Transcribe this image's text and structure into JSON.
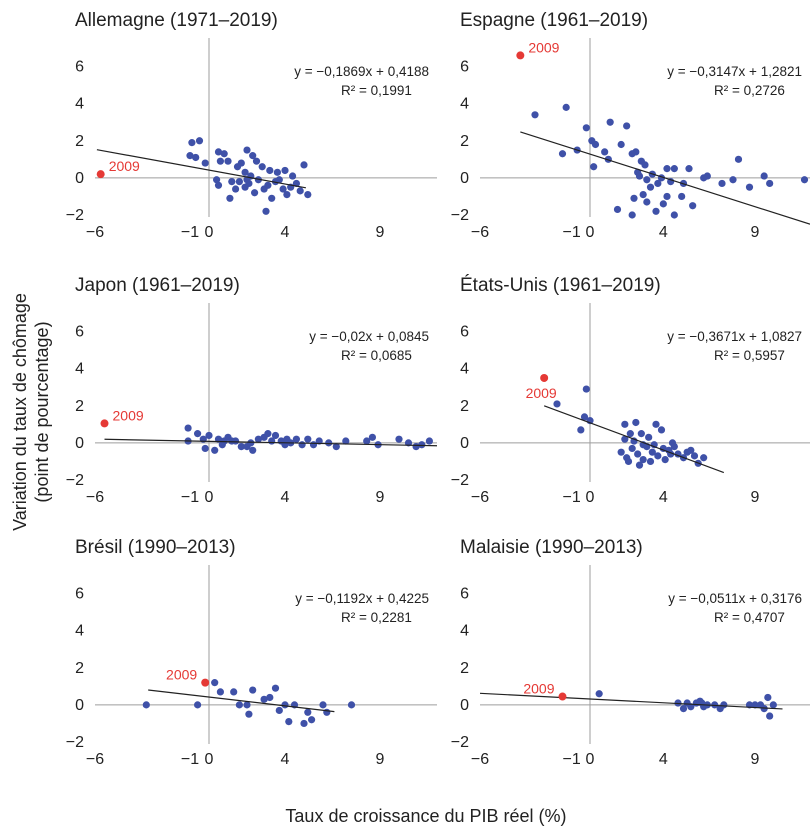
{
  "figure": {
    "ylabel_line1": "Variation du taux de chômage",
    "ylabel_line2": "(point de pourcentage)",
    "xlabel": "Taux de croissance du PIB réel (%)"
  },
  "colors": {
    "point": "#3f51a8",
    "highlight": "#e53935",
    "axis": "#9e9e9e",
    "line": "#222222"
  },
  "chart_data": [
    {
      "type": "scatter",
      "title": "Allemagne (1971–2019)",
      "xlim": [
        -6,
        12
      ],
      "ylim": [
        -2,
        7
      ],
      "xticks": [
        -6,
        -1,
        0,
        4,
        9
      ],
      "yticks": [
        -2,
        0,
        2,
        4,
        6
      ],
      "xtick_labels": [
        "−6",
        "−1",
        "0",
        "4",
        "9"
      ],
      "ytick_labels": [
        "−2",
        "0",
        "2",
        "4",
        "6"
      ],
      "equation": "y = −0,1869x + 0,4188",
      "r2": "R² = 0,1991",
      "slope": -0.1869,
      "intercept": 0.4188,
      "fit_x": [
        -5.9,
        5.1
      ],
      "highlight": {
        "x": -5.7,
        "y": 0.2,
        "label": "2009"
      },
      "points": [
        [
          -1.0,
          1.2
        ],
        [
          -0.9,
          1.9
        ],
        [
          -0.5,
          2.0
        ],
        [
          -0.7,
          1.1
        ],
        [
          -0.2,
          0.8
        ],
        [
          0.5,
          1.4
        ],
        [
          0.8,
          1.3
        ],
        [
          1.0,
          0.9
        ],
        [
          0.6,
          0.9
        ],
        [
          1.5,
          0.6
        ],
        [
          2.0,
          1.5
        ],
        [
          2.3,
          1.2
        ],
        [
          2.5,
          0.9
        ],
        [
          2.8,
          0.6
        ],
        [
          3.2,
          0.4
        ],
        [
          1.7,
          0.8
        ],
        [
          1.9,
          0.3
        ],
        [
          2.2,
          0.1
        ],
        [
          3.6,
          0.3
        ],
        [
          4.0,
          0.4
        ],
        [
          4.4,
          0.1
        ],
        [
          5.0,
          0.7
        ],
        [
          0.4,
          -0.1
        ],
        [
          0.5,
          -0.4
        ],
        [
          1.1,
          -1.1
        ],
        [
          1.4,
          -0.6
        ],
        [
          1.6,
          -0.2
        ],
        [
          1.9,
          -0.5
        ],
        [
          2.1,
          -0.3
        ],
        [
          2.4,
          -0.8
        ],
        [
          2.6,
          -0.1
        ],
        [
          2.9,
          -0.6
        ],
        [
          3.1,
          -0.4
        ],
        [
          3.3,
          -1.1
        ],
        [
          3.5,
          -0.2
        ],
        [
          3.7,
          -0.1
        ],
        [
          3.9,
          -0.6
        ],
        [
          4.1,
          -0.9
        ],
        [
          4.3,
          -0.5
        ],
        [
          4.6,
          -0.3
        ],
        [
          5.2,
          -0.9
        ],
        [
          3.0,
          -1.8
        ],
        [
          2.0,
          -0.1
        ],
        [
          1.2,
          -0.2
        ],
        [
          4.8,
          -0.7
        ]
      ]
    },
    {
      "type": "scatter",
      "title": "Espagne (1961–2019)",
      "xlim": [
        -6,
        12
      ],
      "ylim": [
        -2,
        7
      ],
      "xticks": [
        -6,
        -1,
        0,
        4,
        9
      ],
      "yticks": [
        -2,
        0,
        2,
        4,
        6
      ],
      "xtick_labels": [
        "−6",
        "−1",
        "0",
        "4",
        "9"
      ],
      "ytick_labels": [
        "−2",
        "0",
        "2",
        "4",
        "6"
      ],
      "equation": "y = −0,3147x + 1,2821",
      "r2": "R² = 0,2726",
      "slope": -0.3147,
      "intercept": 1.2821,
      "fit_x": [
        -3.8,
        12.0
      ],
      "highlight": {
        "x": -3.8,
        "y": 6.6,
        "label": "2009"
      },
      "points": [
        [
          -3.0,
          3.4
        ],
        [
          -1.3,
          3.8
        ],
        [
          -0.7,
          1.5
        ],
        [
          -1.5,
          1.3
        ],
        [
          -0.2,
          2.7
        ],
        [
          0.1,
          2.0
        ],
        [
          0.3,
          1.8
        ],
        [
          1.1,
          3.0
        ],
        [
          2.0,
          2.8
        ],
        [
          1.7,
          1.8
        ],
        [
          2.5,
          1.4
        ],
        [
          0.8,
          1.4
        ],
        [
          2.3,
          1.3
        ],
        [
          2.8,
          0.9
        ],
        [
          3.0,
          0.7
        ],
        [
          2.6,
          0.3
        ],
        [
          3.4,
          0.2
        ],
        [
          4.2,
          0.5
        ],
        [
          4.6,
          0.5
        ],
        [
          5.4,
          0.5
        ],
        [
          3.9,
          0.0
        ],
        [
          6.2,
          0.0
        ],
        [
          6.4,
          0.1
        ],
        [
          7.2,
          -0.3
        ],
        [
          8.1,
          1.0
        ],
        [
          8.7,
          -0.5
        ],
        [
          9.5,
          0.1
        ],
        [
          9.8,
          -0.3
        ],
        [
          11.7,
          -0.1
        ],
        [
          7.8,
          -0.1
        ],
        [
          5.1,
          -0.3
        ],
        [
          3.7,
          -0.3
        ],
        [
          3.3,
          -0.5
        ],
        [
          2.9,
          -0.9
        ],
        [
          3.1,
          -1.3
        ],
        [
          2.4,
          -1.1
        ],
        [
          1.5,
          -1.7
        ],
        [
          2.3,
          -2.0
        ],
        [
          3.6,
          -1.8
        ],
        [
          4.2,
          -1.0
        ],
        [
          4.6,
          -2.0
        ],
        [
          5.6,
          -1.5
        ],
        [
          5.0,
          -1.0
        ],
        [
          4.0,
          -1.4
        ],
        [
          3.1,
          -0.1
        ],
        [
          2.7,
          0.1
        ],
        [
          4.4,
          -0.2
        ],
        [
          1.0,
          1.0
        ],
        [
          0.2,
          0.6
        ]
      ]
    },
    {
      "type": "scatter",
      "title": "Japon (1961–2019)",
      "xlim": [
        -6,
        12
      ],
      "ylim": [
        -2,
        7
      ],
      "xticks": [
        -6,
        -1,
        0,
        4,
        9
      ],
      "yticks": [
        -2,
        0,
        2,
        4,
        6
      ],
      "xtick_labels": [
        "−6",
        "−1",
        "0",
        "4",
        "9"
      ],
      "ytick_labels": [
        "−2",
        "0",
        "2",
        "4",
        "6"
      ],
      "equation": "y = −0,02x + 0,0845",
      "r2": "R² = 0,0685",
      "slope": -0.02,
      "intercept": 0.0845,
      "fit_x": [
        -5.5,
        12.0
      ],
      "highlight": {
        "x": -5.5,
        "y": 1.05,
        "label": "2009"
      },
      "points": [
        [
          -1.1,
          0.1
        ],
        [
          -1.1,
          0.8
        ],
        [
          -0.6,
          0.5
        ],
        [
          -0.3,
          0.2
        ],
        [
          -0.2,
          -0.3
        ],
        [
          0.0,
          0.4
        ],
        [
          0.3,
          -0.4
        ],
        [
          0.5,
          0.2
        ],
        [
          0.7,
          -0.1
        ],
        [
          1.0,
          0.3
        ],
        [
          1.2,
          0.1
        ],
        [
          1.4,
          0.1
        ],
        [
          1.7,
          -0.2
        ],
        [
          2.0,
          -0.2
        ],
        [
          2.3,
          -0.4
        ],
        [
          2.6,
          0.2
        ],
        [
          2.9,
          0.3
        ],
        [
          3.1,
          0.5
        ],
        [
          3.3,
          0.1
        ],
        [
          3.5,
          0.4
        ],
        [
          3.8,
          0.1
        ],
        [
          4.1,
          0.2
        ],
        [
          4.3,
          0.0
        ],
        [
          4.6,
          0.2
        ],
        [
          4.9,
          -0.1
        ],
        [
          5.2,
          0.2
        ],
        [
          5.5,
          -0.1
        ],
        [
          5.8,
          0.1
        ],
        [
          6.3,
          0.0
        ],
        [
          6.7,
          -0.2
        ],
        [
          8.3,
          0.1
        ],
        [
          8.6,
          0.3
        ],
        [
          8.9,
          -0.1
        ],
        [
          10.0,
          0.2
        ],
        [
          10.5,
          0.0
        ],
        [
          10.9,
          -0.2
        ],
        [
          11.2,
          -0.1
        ],
        [
          11.6,
          0.1
        ],
        [
          0.8,
          0.1
        ],
        [
          2.2,
          0.0
        ],
        [
          4.0,
          -0.1
        ],
        [
          7.2,
          0.1
        ]
      ]
    },
    {
      "type": "scatter",
      "title": "États-Unis (1961–2019)",
      "xlim": [
        -6,
        12
      ],
      "ylim": [
        -2,
        7
      ],
      "xticks": [
        -6,
        -1,
        0,
        4,
        9
      ],
      "yticks": [
        -2,
        0,
        2,
        4,
        6
      ],
      "xtick_labels": [
        "−6",
        "−1",
        "0",
        "4",
        "9"
      ],
      "ytick_labels": [
        "−2",
        "0",
        "2",
        "4",
        "6"
      ],
      "equation": "y = −0,3671x + 1,0827",
      "r2": "R² = 0,5957",
      "slope": -0.3671,
      "intercept": 1.0827,
      "fit_x": [
        -2.5,
        7.3
      ],
      "highlight": {
        "x": -2.5,
        "y": 3.5,
        "label": "2009"
      },
      "points": [
        [
          -1.8,
          2.1
        ],
        [
          -0.5,
          0.7
        ],
        [
          -0.3,
          1.4
        ],
        [
          -0.2,
          2.9
        ],
        [
          0.0,
          1.2
        ],
        [
          1.9,
          1.0
        ],
        [
          2.2,
          0.5
        ],
        [
          2.5,
          1.1
        ],
        [
          2.8,
          0.5
        ],
        [
          3.2,
          0.3
        ],
        [
          3.6,
          1.0
        ],
        [
          3.9,
          0.7
        ],
        [
          1.7,
          -0.5
        ],
        [
          2.0,
          -0.8
        ],
        [
          2.3,
          -0.3
        ],
        [
          2.6,
          -0.6
        ],
        [
          2.9,
          -0.9
        ],
        [
          3.1,
          -0.2
        ],
        [
          3.4,
          -0.5
        ],
        [
          3.7,
          -0.7
        ],
        [
          4.0,
          -0.3
        ],
        [
          4.3,
          -0.4
        ],
        [
          4.5,
          0.0
        ],
        [
          4.8,
          -0.6
        ],
        [
          5.1,
          -0.8
        ],
        [
          5.5,
          -0.4
        ],
        [
          5.9,
          -1.1
        ],
        [
          6.2,
          -0.8
        ],
        [
          2.1,
          -1.0
        ],
        [
          2.7,
          -1.2
        ],
        [
          3.3,
          -1.0
        ],
        [
          4.1,
          -0.9
        ],
        [
          4.6,
          -0.2
        ],
        [
          1.9,
          0.2
        ],
        [
          2.4,
          0.1
        ],
        [
          2.9,
          -0.1
        ],
        [
          3.5,
          -0.1
        ],
        [
          4.4,
          -0.6
        ],
        [
          5.3,
          -0.5
        ],
        [
          5.7,
          -0.7
        ]
      ]
    },
    {
      "type": "scatter",
      "title": "Brésil (1990–2013)",
      "xlim": [
        -6,
        12
      ],
      "ylim": [
        -2,
        7
      ],
      "xticks": [
        -6,
        -1,
        0,
        4,
        9
      ],
      "yticks": [
        -2,
        0,
        2,
        4,
        6
      ],
      "xtick_labels": [
        "−6",
        "−1",
        "0",
        "4",
        "9"
      ],
      "ytick_labels": [
        "−2",
        "0",
        "2",
        "4",
        "6"
      ],
      "equation": "y = −0,1192x + 0,4225",
      "r2": "R² = 0,2281",
      "slope": -0.1192,
      "intercept": 0.4225,
      "fit_x": [
        -3.2,
        6.6
      ],
      "highlight": {
        "x": -0.2,
        "y": 1.2,
        "label": "2009"
      },
      "points": [
        [
          -3.3,
          0.0
        ],
        [
          -0.6,
          0.0
        ],
        [
          0.3,
          1.2
        ],
        [
          0.6,
          0.7
        ],
        [
          1.3,
          0.7
        ],
        [
          1.6,
          0.0
        ],
        [
          2.1,
          -0.5
        ],
        [
          2.3,
          0.8
        ],
        [
          2.9,
          0.3
        ],
        [
          3.2,
          0.4
        ],
        [
          3.5,
          0.9
        ],
        [
          3.7,
          -0.3
        ],
        [
          4.0,
          0.0
        ],
        [
          4.2,
          -0.9
        ],
        [
          4.5,
          0.0
        ],
        [
          5.0,
          -1.0
        ],
        [
          5.2,
          -0.4
        ],
        [
          5.4,
          -0.8
        ],
        [
          6.0,
          0.0
        ],
        [
          6.2,
          -0.4
        ],
        [
          7.5,
          0.0
        ],
        [
          2.0,
          0.0
        ]
      ]
    },
    {
      "type": "scatter",
      "title": "Malaisie (1990–2013)",
      "xlim": [
        -6,
        12
      ],
      "ylim": [
        -2,
        7
      ],
      "xticks": [
        -6,
        -1,
        0,
        4,
        9
      ],
      "yticks": [
        -2,
        0,
        2,
        4,
        6
      ],
      "xtick_labels": [
        "−6",
        "−1",
        "0",
        "4",
        "9"
      ],
      "ytick_labels": [
        "−2",
        "0",
        "2",
        "4",
        "6"
      ],
      "equation": "y = −0,0511x + 0,3176",
      "r2": "R² = 0,4707",
      "slope": -0.0511,
      "intercept": 0.3176,
      "fit_x": [
        -6.0,
        10.5
      ],
      "highlight": {
        "x": -1.5,
        "y": 0.45,
        "label": "2009"
      },
      "points": [
        [
          0.5,
          0.6
        ],
        [
          4.8,
          0.1
        ],
        [
          5.1,
          -0.2
        ],
        [
          5.3,
          0.1
        ],
        [
          5.5,
          -0.1
        ],
        [
          5.8,
          0.1
        ],
        [
          6.0,
          0.2
        ],
        [
          6.2,
          -0.1
        ],
        [
          6.4,
          0.0
        ],
        [
          6.8,
          0.0
        ],
        [
          7.1,
          -0.2
        ],
        [
          7.3,
          0.0
        ],
        [
          8.7,
          0.0
        ],
        [
          9.0,
          0.0
        ],
        [
          9.3,
          0.0
        ],
        [
          9.5,
          -0.2
        ],
        [
          9.7,
          0.4
        ],
        [
          9.8,
          -0.6
        ],
        [
          10.0,
          0.0
        ],
        [
          6.1,
          0.1
        ]
      ]
    }
  ]
}
